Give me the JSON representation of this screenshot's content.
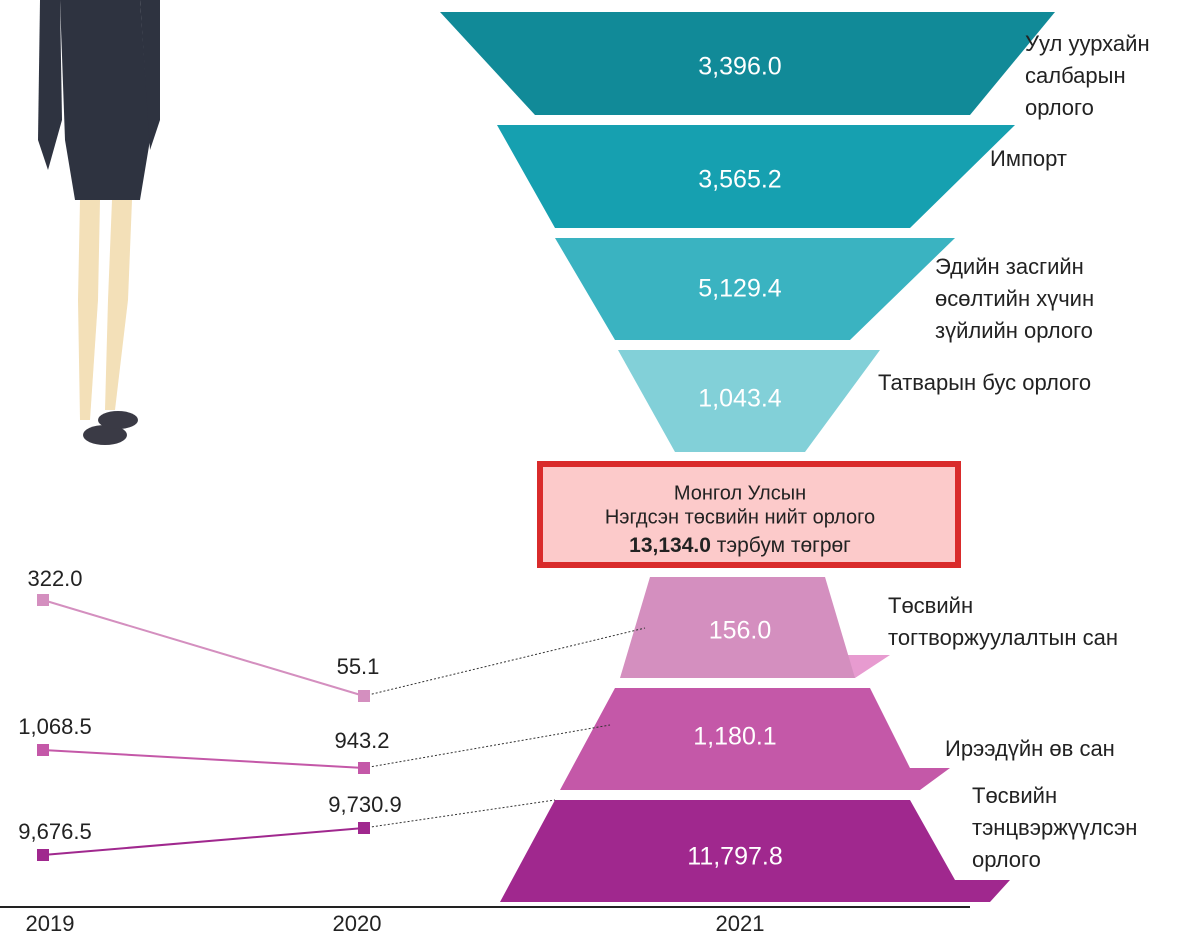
{
  "top_funnel": [
    {
      "value": "3,396.0",
      "label": [
        "Уул уурхайн",
        "салбарын",
        "орлого"
      ]
    },
    {
      "value": "3,565.2",
      "label": [
        "Импорт"
      ]
    },
    {
      "value": "5,129.4",
      "label": [
        "Эдийн засгийн",
        "өсөлтийн хүчин",
        "зүйлийн орлого"
      ]
    },
    {
      "value": "1,043.4",
      "label": [
        "Татварын бус орлого"
      ]
    }
  ],
  "total": {
    "lines": [
      "Монгол Улсын",
      "Нэгдсэн төсвийн нийт орлого"
    ],
    "amount": "13,134.0",
    "unit": "тэрбум төгрөг"
  },
  "bottom_funnel": [
    {
      "value": "156.0",
      "label": [
        "Төсвийн",
        "тогтворжуулалтын сан"
      ]
    },
    {
      "value": "1,180.1",
      "label": [
        "Ирээдүйн өв сан"
      ]
    },
    {
      "value": "11,797.8",
      "label": [
        "Төсвийн",
        "тэнцвэржүүлсэн",
        "орлого"
      ]
    }
  ],
  "trend": {
    "years": [
      "2019",
      "2020",
      "2021"
    ],
    "series": [
      {
        "values": [
          "322.0",
          "55.1"
        ]
      },
      {
        "values": [
          "1,068.5",
          "943.2"
        ]
      },
      {
        "values": [
          "9,676.5",
          "9,730.9"
        ]
      }
    ]
  }
}
